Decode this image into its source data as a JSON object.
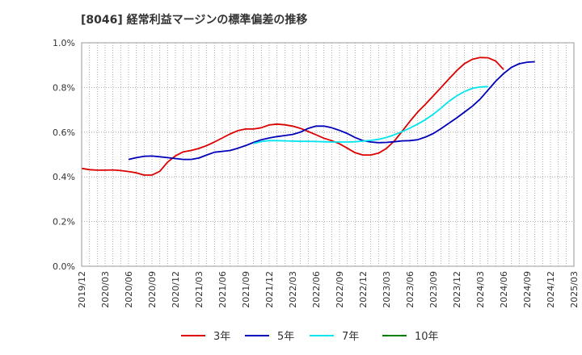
{
  "chart_data": {
    "type": "line",
    "title": "[8046]  経常利益マージンの標準偏差の推移",
    "xlabel": "",
    "ylabel": "",
    "ylim": [
      0,
      1.0
    ],
    "yticks": [
      "0.0%",
      "0.2%",
      "0.4%",
      "0.6%",
      "0.8%",
      "1.0%"
    ],
    "xticks": [
      "2019/12",
      "2020/03",
      "2020/06",
      "2020/09",
      "2020/12",
      "2021/03",
      "2021/06",
      "2021/09",
      "2021/12",
      "2022/03",
      "2022/06",
      "2022/09",
      "2022/12",
      "2023/03",
      "2023/06",
      "2023/09",
      "2023/12",
      "2024/03",
      "2024/06",
      "2024/09",
      "2024/12",
      "2025/03"
    ],
    "grid": true,
    "legend_position": "bottom",
    "series": [
      {
        "name": "3年",
        "color": "#dd0000",
        "start_index": 0,
        "values": [
          0.438,
          0.432,
          0.43,
          0.43,
          0.431,
          0.428,
          0.424,
          0.418,
          0.408,
          0.408,
          0.425,
          0.466,
          0.494,
          0.512,
          0.518,
          0.527,
          0.54,
          0.556,
          0.574,
          0.592,
          0.607,
          0.614,
          0.614,
          0.62,
          0.632,
          0.636,
          0.633,
          0.627,
          0.617,
          0.603,
          0.588,
          0.573,
          0.562,
          0.548,
          0.528,
          0.508,
          0.498,
          0.498,
          0.506,
          0.527,
          0.56,
          0.603,
          0.648,
          0.69,
          0.725,
          0.762,
          0.8,
          0.838,
          0.875,
          0.907,
          0.926,
          0.934,
          0.933,
          0.918,
          0.88
        ]
      },
      {
        "name": "5年",
        "color": "#0000bb",
        "start_index": 6,
        "values": [
          0.478,
          0.486,
          0.492,
          0.493,
          0.49,
          0.486,
          0.482,
          0.478,
          0.478,
          0.484,
          0.498,
          0.51,
          0.514,
          0.518,
          0.528,
          0.54,
          0.554,
          0.566,
          0.574,
          0.58,
          0.585,
          0.59,
          0.6,
          0.617,
          0.627,
          0.627,
          0.62,
          0.608,
          0.594,
          0.576,
          0.562,
          0.556,
          0.553,
          0.554,
          0.557,
          0.561,
          0.562,
          0.566,
          0.578,
          0.594,
          0.616,
          0.64,
          0.664,
          0.69,
          0.716,
          0.748,
          0.788,
          0.828,
          0.862,
          0.89,
          0.906,
          0.913,
          0.915
        ]
      },
      {
        "name": "7年",
        "color": "#00e5ee",
        "start_index": 22,
        "values": [
          0.549,
          0.558,
          0.562,
          0.562,
          0.561,
          0.56,
          0.559,
          0.559,
          0.558,
          0.557,
          0.556,
          0.556,
          0.556,
          0.557,
          0.56,
          0.563,
          0.568,
          0.576,
          0.588,
          0.602,
          0.618,
          0.636,
          0.656,
          0.68,
          0.708,
          0.738,
          0.762,
          0.782,
          0.796,
          0.802,
          0.804
        ]
      },
      {
        "name": "10年",
        "color": "#008000",
        "start_index": 0,
        "values": []
      }
    ]
  }
}
